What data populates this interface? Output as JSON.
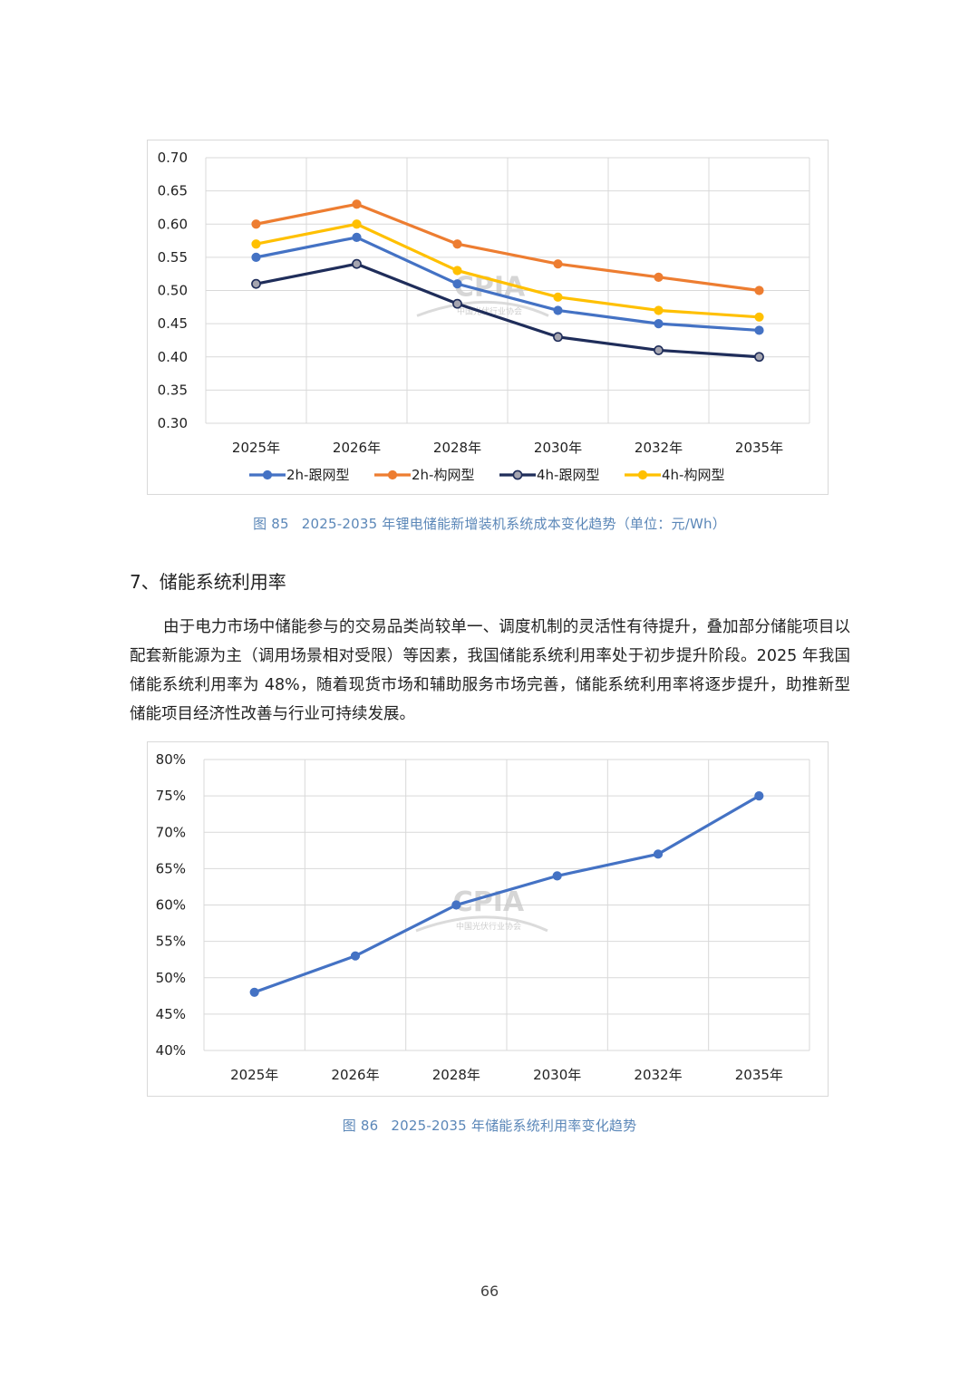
{
  "chart_data": [
    {
      "type": "line",
      "categories": [
        "2025年",
        "2026年",
        "2028年",
        "2030年",
        "2032年",
        "2035年"
      ],
      "series": [
        {
          "name": "2h-跟网型",
          "color": "#4472c4",
          "values": [
            0.55,
            0.58,
            0.51,
            0.47,
            0.45,
            0.44
          ]
        },
        {
          "name": "2h-构网型",
          "color": "#ed7d31",
          "values": [
            0.6,
            0.63,
            0.57,
            0.54,
            0.52,
            0.5
          ]
        },
        {
          "name": "4h-跟网型",
          "color": "#1f2d5a",
          "marker_fill": "#a5a5b0",
          "values": [
            0.51,
            0.54,
            0.48,
            0.43,
            0.41,
            0.4
          ]
        },
        {
          "name": "4h-构网型",
          "color": "#ffc000",
          "values": [
            0.57,
            0.6,
            0.53,
            0.49,
            0.47,
            0.46
          ]
        }
      ],
      "ylim": [
        0.3,
        0.7
      ],
      "yticks": [
        "0.70",
        "0.65",
        "0.60",
        "0.55",
        "0.50",
        "0.45",
        "0.40",
        "0.35",
        "0.30"
      ],
      "legend": "bottom",
      "grid": true
    },
    {
      "type": "line",
      "categories": [
        "2025年",
        "2026年",
        "2028年",
        "2030年",
        "2032年",
        "2035年"
      ],
      "series": [
        {
          "name": "储能系统利用率",
          "color": "#4472c4",
          "values": [
            48,
            53,
            60,
            64,
            67,
            75
          ]
        }
      ],
      "ylim": [
        40,
        80
      ],
      "yticks": [
        "80%",
        "75%",
        "70%",
        "65%",
        "60%",
        "55%",
        "50%",
        "45%",
        "40%"
      ],
      "grid": true
    }
  ],
  "watermark": {
    "logo": "CPIA",
    "org": "中国光伏行业协会"
  },
  "caption1": {
    "number": "图 85",
    "text": "2025-2035 年锂电储能新增装机系统成本变化趋势（单位：元/Wh）"
  },
  "section": {
    "heading": "7、储能系统利用率"
  },
  "paragraph": "由于电力市场中储能参与的交易品类尚较单一、调度机制的灵活性有待提升，叠加部分储能项目以配套新能源为主（调用场景相对受限）等因素，我国储能系统利用率处于初步提升阶段。2025 年我国储能系统利用率为 48%，随着现货市场和辅助服务市场完善，储能系统利用率将逐步提升，助推新型储能项目经济性改善与行业可持续发展。",
  "caption2": {
    "number": "图 86",
    "text": "2025-2035 年储能系统利用率变化趋势"
  },
  "page_number": "66"
}
